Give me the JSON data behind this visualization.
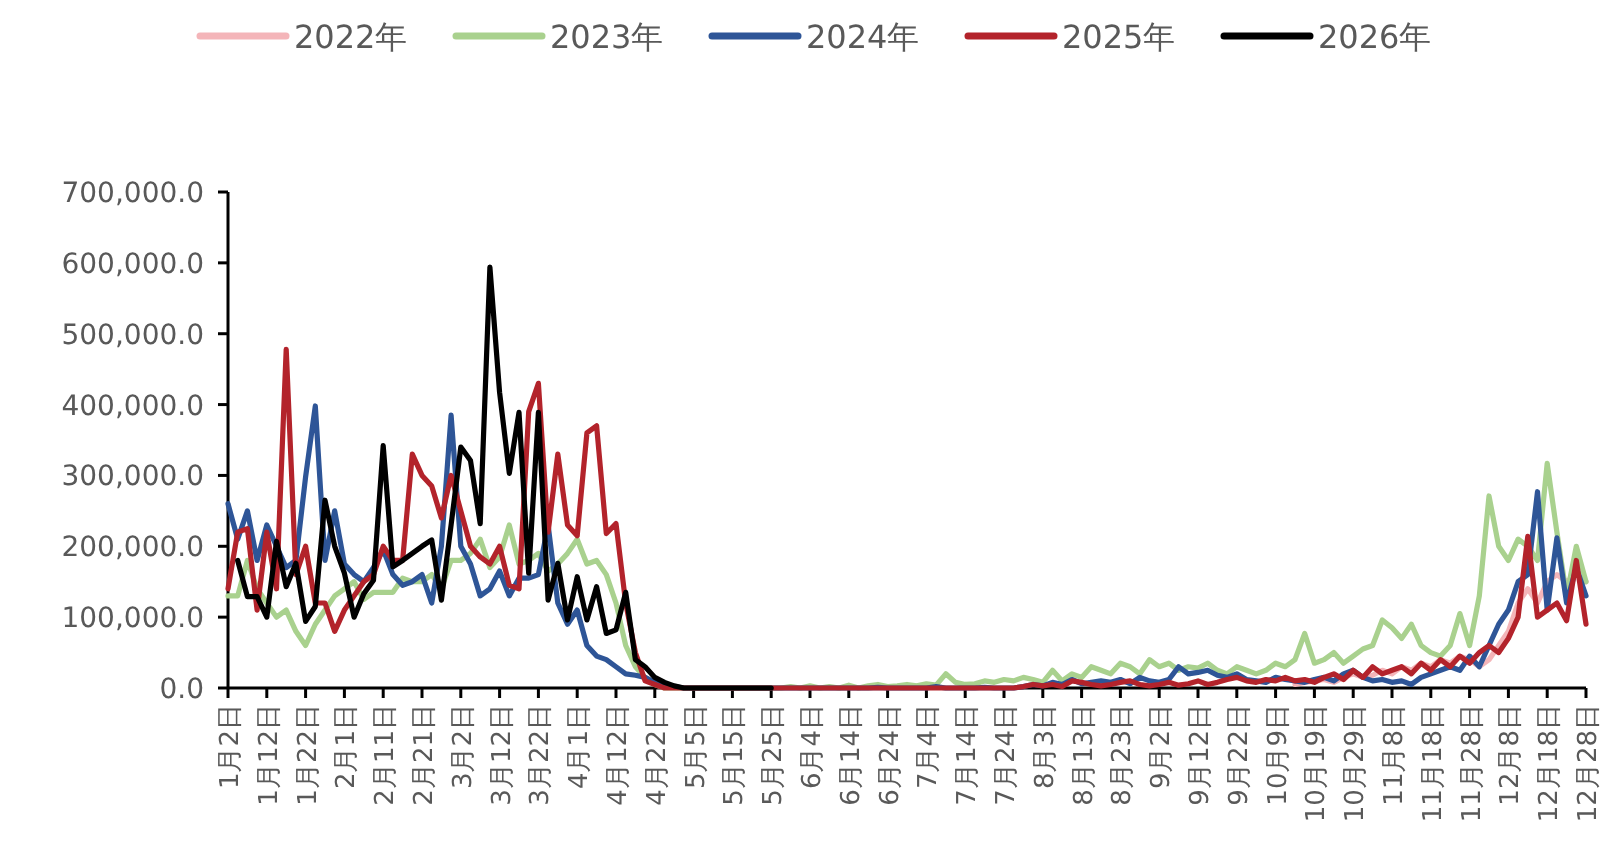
{
  "chart_data": {
    "type": "line",
    "legend": "top",
    "categories": [
      "1月2日",
      null,
      null,
      null,
      "1月12日",
      null,
      null,
      null,
      "1月22日",
      null,
      null,
      null,
      "2月1日",
      null,
      null,
      null,
      "2月11日",
      null,
      null,
      null,
      "2月21日",
      null,
      null,
      null,
      "3月2日",
      null,
      null,
      null,
      "3月12日",
      null,
      null,
      null,
      "3月22日",
      null,
      null,
      null,
      "4月1日",
      null,
      null,
      null,
      "4月12日",
      null,
      null,
      null,
      "4月22日",
      null,
      null,
      null,
      "5月5日",
      null,
      null,
      null,
      "5月15日",
      null,
      null,
      null,
      "5月25日",
      null,
      null,
      null,
      "6月4日",
      null,
      null,
      null,
      "6月14日",
      null,
      null,
      null,
      "6月24日",
      null,
      null,
      null,
      "7月4日",
      null,
      null,
      null,
      "7月14日",
      null,
      null,
      null,
      "7月24日",
      null,
      null,
      null,
      "8月3日",
      null,
      null,
      null,
      "8月13日",
      null,
      null,
      null,
      "8月23日",
      null,
      null,
      null,
      "9月2日",
      null,
      null,
      null,
      "9月12日",
      null,
      null,
      null,
      "9月22日",
      null,
      null,
      null,
      "10月9日",
      null,
      null,
      null,
      "10月19日",
      null,
      null,
      null,
      "10月29日",
      null,
      null,
      null,
      "11月8日",
      null,
      null,
      null,
      "11月18日",
      null,
      null,
      null,
      "11月28日",
      null,
      null,
      null,
      "12月8日",
      null,
      null,
      null,
      "12月18日",
      null,
      null,
      null,
      "12月28日"
    ],
    "ylim": [
      0,
      700000
    ],
    "yticks": [
      {
        "value": 0,
        "label": "0.0"
      },
      {
        "value": 100000,
        "label": "100,000.0"
      },
      {
        "value": 200000,
        "label": "200,000.0"
      },
      {
        "value": 300000,
        "label": "300,000.0"
      },
      {
        "value": 400000,
        "label": "400,000.0"
      },
      {
        "value": 500000,
        "label": "500,000.0"
      },
      {
        "value": 600000,
        "label": "600,000.0"
      },
      {
        "value": 700000,
        "label": "700,000.0"
      }
    ],
    "series": [
      {
        "name": "2022年",
        "color": "#f4b5b9",
        "values": [
          null,
          null,
          null,
          null,
          null,
          null,
          null,
          null,
          null,
          null,
          null,
          null,
          null,
          null,
          null,
          null,
          null,
          null,
          null,
          null,
          null,
          null,
          null,
          null,
          null,
          null,
          null,
          null,
          null,
          null,
          null,
          null,
          null,
          null,
          null,
          null,
          null,
          null,
          null,
          null,
          null,
          null,
          null,
          null,
          null,
          null,
          null,
          null,
          null,
          null,
          null,
          null,
          null,
          null,
          null,
          null,
          null,
          null,
          null,
          null,
          null,
          null,
          null,
          null,
          null,
          null,
          null,
          null,
          null,
          null,
          null,
          null,
          null,
          null,
          null,
          null,
          null,
          null,
          null,
          null,
          null,
          null,
          null,
          null,
          null,
          null,
          null,
          null,
          null,
          null,
          null,
          null,
          null,
          null,
          null,
          null,
          null,
          null,
          null,
          null,
          null,
          null,
          null,
          null,
          null,
          null,
          null,
          null,
          null,
          null,
          5000,
          8000,
          10000,
          12000,
          8000,
          15000,
          20000,
          15000,
          18000,
          25000,
          20000,
          30000,
          25000,
          35000,
          30000,
          40000,
          35000,
          45000,
          40000,
          30000,
          40000,
          60000,
          80000,
          120000,
          140000,
          120000,
          150000,
          160000,
          150000,
          160000,
          150000
        ]
      },
      {
        "name": "2023年",
        "color": "#a9d18e",
        "values": [
          130000,
          130000,
          180000,
          140000,
          120000,
          100000,
          110000,
          80000,
          60000,
          90000,
          110000,
          130000,
          140000,
          150000,
          125000,
          135000,
          135000,
          135000,
          155000,
          150000,
          150000,
          160000,
          140000,
          180000,
          180000,
          190000,
          210000,
          170000,
          185000,
          230000,
          175000,
          180000,
          190000,
          165000,
          175000,
          190000,
          210000,
          175000,
          180000,
          160000,
          120000,
          60000,
          30000,
          15000,
          5000,
          0,
          0,
          0,
          0,
          0,
          0,
          0,
          0,
          0,
          0,
          0,
          0,
          0,
          2000,
          0,
          3000,
          0,
          2000,
          0,
          4000,
          0,
          3000,
          5000,
          2000,
          3000,
          5000,
          3000,
          6000,
          4000,
          20000,
          8000,
          5000,
          6000,
          10000,
          8000,
          12000,
          10000,
          15000,
          12000,
          8000,
          25000,
          10000,
          20000,
          15000,
          30000,
          25000,
          20000,
          35000,
          30000,
          20000,
          40000,
          30000,
          35000,
          25000,
          30000,
          28000,
          35000,
          25000,
          20000,
          30000,
          25000,
          20000,
          25000,
          35000,
          30000,
          40000,
          77000,
          35000,
          40000,
          50000,
          35000,
          45000,
          55000,
          60000,
          96000,
          85000,
          70000,
          90000,
          60000,
          50000,
          45000,
          60000,
          105000,
          60000,
          130000,
          271000,
          200000,
          180000,
          210000,
          200000,
          180000,
          317000,
          220000,
          130000,
          200000,
          150000
        ]
      },
      {
        "name": "2024年",
        "color": "#2e5597",
        "values": [
          260000,
          210000,
          250000,
          180000,
          230000,
          200000,
          170000,
          180000,
          298000,
          398000,
          180000,
          250000,
          175000,
          160000,
          150000,
          170000,
          195000,
          160000,
          145000,
          150000,
          160000,
          120000,
          200000,
          385000,
          200000,
          175000,
          130000,
          140000,
          165000,
          130000,
          155000,
          155000,
          160000,
          230000,
          120000,
          90000,
          110000,
          60000,
          45000,
          40000,
          30000,
          20000,
          18000,
          15000,
          8000,
          5000,
          2000,
          0,
          0,
          0,
          0,
          0,
          0,
          0,
          0,
          0,
          0,
          0,
          0,
          0,
          0,
          0,
          0,
          0,
          0,
          0,
          0,
          1000,
          0,
          0,
          0,
          0,
          0,
          2000,
          0,
          0,
          0,
          0,
          1000,
          0,
          0,
          0,
          2000,
          5000,
          3000,
          8000,
          5000,
          12000,
          6000,
          8000,
          10000,
          8000,
          12000,
          6000,
          15000,
          10000,
          8000,
          12000,
          30000,
          20000,
          22000,
          25000,
          18000,
          15000,
          20000,
          12000,
          10000,
          8000,
          15000,
          12000,
          10000,
          8000,
          12000,
          15000,
          10000,
          20000,
          25000,
          15000,
          10000,
          12000,
          8000,
          10000,
          5000,
          15000,
          20000,
          25000,
          30000,
          25000,
          45000,
          30000,
          60000,
          90000,
          110000,
          150000,
          160000,
          277000,
          110000,
          212000,
          120000,
          170000,
          130000
        ]
      },
      {
        "name": "2025年",
        "color": "#b3232b",
        "values": [
          140000,
          220000,
          225000,
          110000,
          220000,
          140000,
          478000,
          160000,
          200000,
          120000,
          120000,
          80000,
          110000,
          130000,
          150000,
          160000,
          200000,
          180000,
          180000,
          330000,
          300000,
          285000,
          240000,
          300000,
          250000,
          200000,
          185000,
          175000,
          200000,
          145000,
          140000,
          390000,
          430000,
          220000,
          330000,
          230000,
          215000,
          360000,
          370000,
          218000,
          232000,
          120000,
          50000,
          10000,
          5000,
          0,
          0,
          0,
          0,
          0,
          0,
          0,
          0,
          0,
          0,
          0,
          0,
          0,
          0,
          0,
          0,
          0,
          0,
          0,
          0,
          0,
          0,
          0,
          0,
          0,
          0,
          0,
          0,
          0,
          0,
          0,
          0,
          0,
          0,
          0,
          0,
          0,
          2000,
          5000,
          3000,
          5000,
          2000,
          10000,
          8000,
          5000,
          3000,
          5000,
          8000,
          10000,
          5000,
          3000,
          5000,
          8000,
          4000,
          6000,
          10000,
          5000,
          8000,
          12000,
          15000,
          10000,
          8000,
          12000,
          10000,
          15000,
          10000,
          12000,
          8000,
          15000,
          20000,
          12000,
          25000,
          15000,
          30000,
          20000,
          25000,
          30000,
          20000,
          35000,
          25000,
          40000,
          30000,
          45000,
          35000,
          50000,
          60000,
          50000,
          70000,
          100000,
          214000,
          100000,
          110000,
          120000,
          95000,
          180000,
          90000
        ]
      },
      {
        "name": "2026年",
        "color": "#000000",
        "values": [
          null,
          180000,
          129000,
          129000,
          100000,
          207000,
          143000,
          176000,
          94000,
          115000,
          265000,
          200000,
          162000,
          100000,
          133000,
          152000,
          342000,
          171000,
          180000,
          190000,
          200000,
          209000,
          124000,
          230000,
          340000,
          321000,
          232000,
          594000,
          417000,
          303000,
          389000,
          162000,
          389000,
          124000,
          176000,
          96000,
          157000,
          96000,
          143000,
          77000,
          82000,
          135000,
          40000,
          30000,
          15000,
          8000,
          3000,
          0,
          0,
          0,
          0,
          0,
          0,
          0,
          0,
          0,
          0,
          null,
          null,
          null,
          null,
          null,
          null,
          null,
          null,
          null,
          null,
          null,
          null,
          null,
          null,
          null,
          null,
          null,
          null,
          null,
          null,
          null,
          null,
          null,
          null,
          null,
          null,
          null,
          null,
          null,
          null,
          null,
          null,
          null,
          null,
          null,
          null,
          null,
          null,
          null,
          null,
          null,
          null,
          null,
          null,
          null,
          null,
          null,
          null,
          null,
          null,
          null,
          null,
          null,
          null,
          null,
          null,
          null,
          null,
          null,
          null,
          null,
          null,
          null,
          null,
          null,
          null,
          null,
          null,
          null,
          null,
          null,
          null,
          null,
          null,
          null,
          null,
          null,
          null,
          null,
          null,
          null,
          null,
          null,
          null
        ]
      }
    ]
  }
}
